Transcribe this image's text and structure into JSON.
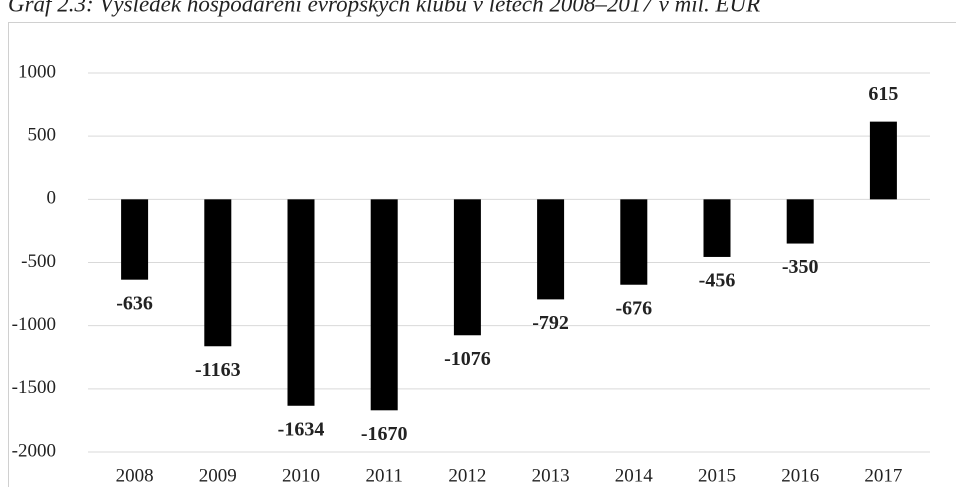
{
  "chart_data": {
    "type": "bar",
    "title": "Graf 2.3: Výsledek hospodaření evropských klubů v letech 2008–2017 v mil. EUR",
    "categories": [
      "2008",
      "2009",
      "2010",
      "2011",
      "2012",
      "2013",
      "2014",
      "2015",
      "2016",
      "2017"
    ],
    "values": [
      -636,
      -1163,
      -1634,
      -1670,
      -1076,
      -792,
      -676,
      -456,
      -350,
      615
    ],
    "color": "#000000",
    "ylim": [
      -2000,
      1000
    ],
    "yticks": [
      -2000,
      -1500,
      -1000,
      -500,
      0,
      500,
      1000
    ],
    "grid": true
  }
}
